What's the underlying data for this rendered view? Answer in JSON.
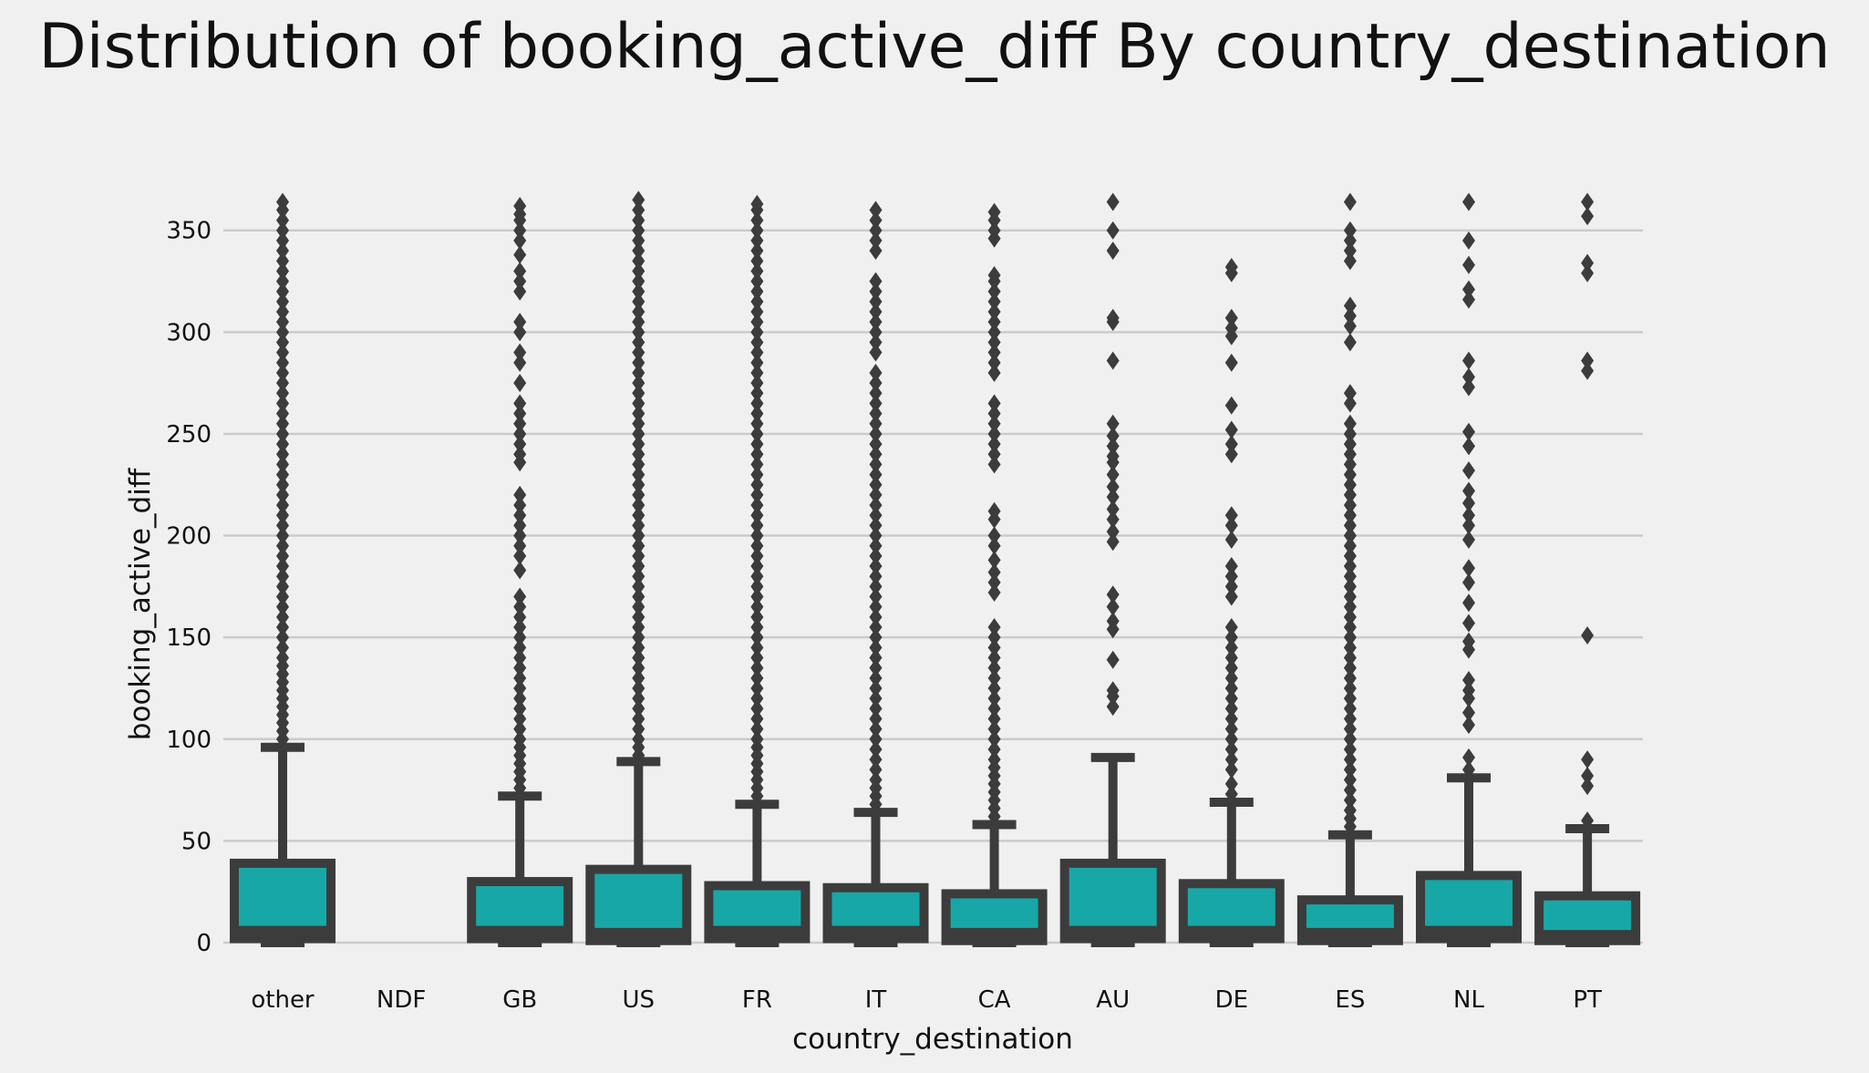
{
  "chart_data": {
    "type": "box",
    "title": "Distribution of booking_active_diff By country_destination",
    "xlabel": "country_destination",
    "ylabel": "booking_active_diff",
    "ylim": [
      0,
      370
    ],
    "yticks": [
      0,
      50,
      100,
      150,
      200,
      250,
      300,
      350
    ],
    "grid": "horizontal",
    "colors": {
      "background": "#f0f0f0",
      "box_fill": "#17a7a7",
      "edge": "#3c3c3c",
      "grid": "#cbcbcb",
      "text": "#111111"
    },
    "categories": [
      "other",
      "NDF",
      "GB",
      "US",
      "FR",
      "IT",
      "CA",
      "AU",
      "DE",
      "ES",
      "NL",
      "PT"
    ],
    "boxes": [
      {
        "category": "other",
        "min": 0,
        "q1": 2,
        "median": 6,
        "q3": 39,
        "max": 96,
        "outliers": [
          100,
          104,
          108,
          112,
          116,
          120,
          124,
          128,
          132,
          136,
          140,
          145,
          150,
          155,
          160,
          165,
          170,
          175,
          180,
          185,
          190,
          195,
          200,
          205,
          210,
          215,
          220,
          225,
          230,
          235,
          240,
          245,
          250,
          255,
          260,
          265,
          270,
          275,
          280,
          285,
          290,
          295,
          300,
          305,
          310,
          315,
          320,
          325,
          330,
          335,
          340,
          345,
          350,
          355,
          360,
          364
        ]
      },
      {
        "category": "NDF",
        "min": null,
        "q1": null,
        "median": null,
        "q3": null,
        "max": null,
        "outliers": []
      },
      {
        "category": "GB",
        "min": 0,
        "q1": 2,
        "median": 6,
        "q3": 30,
        "max": 72,
        "outliers": [
          76,
          80,
          84,
          88,
          92,
          96,
          100,
          105,
          110,
          115,
          120,
          125,
          130,
          135,
          140,
          145,
          150,
          155,
          160,
          165,
          170,
          183,
          190,
          195,
          200,
          205,
          210,
          215,
          220,
          236,
          240,
          245,
          250,
          255,
          260,
          265,
          275,
          285,
          290,
          300,
          305,
          320,
          325,
          330,
          338,
          345,
          350,
          355,
          358,
          362
        ]
      },
      {
        "category": "US",
        "min": 0,
        "q1": 1,
        "median": 5,
        "q3": 36,
        "max": 89,
        "outliers": [
          92,
          96,
          100,
          105,
          110,
          115,
          120,
          125,
          130,
          135,
          140,
          145,
          150,
          155,
          160,
          165,
          170,
          175,
          180,
          185,
          190,
          195,
          200,
          205,
          210,
          215,
          220,
          225,
          230,
          235,
          240,
          245,
          250,
          255,
          260,
          265,
          270,
          275,
          280,
          285,
          290,
          295,
          300,
          305,
          310,
          315,
          320,
          325,
          330,
          335,
          340,
          345,
          350,
          355,
          360,
          365
        ]
      },
      {
        "category": "FR",
        "min": 0,
        "q1": 2,
        "median": 6,
        "q3": 28,
        "max": 68,
        "outliers": [
          72,
          76,
          80,
          84,
          88,
          92,
          96,
          100,
          105,
          110,
          115,
          120,
          125,
          130,
          135,
          140,
          145,
          150,
          155,
          160,
          165,
          170,
          175,
          180,
          185,
          190,
          195,
          200,
          205,
          210,
          215,
          220,
          225,
          230,
          235,
          240,
          245,
          250,
          255,
          260,
          265,
          270,
          275,
          280,
          285,
          290,
          295,
          300,
          305,
          310,
          315,
          320,
          325,
          330,
          335,
          340,
          345,
          350,
          355,
          360,
          363
        ]
      },
      {
        "category": "IT",
        "min": 0,
        "q1": 2,
        "median": 6,
        "q3": 27,
        "max": 64,
        "outliers": [
          68,
          72,
          76,
          80,
          85,
          90,
          95,
          100,
          105,
          110,
          115,
          120,
          125,
          130,
          135,
          140,
          145,
          150,
          155,
          160,
          165,
          170,
          175,
          180,
          185,
          190,
          195,
          200,
          205,
          210,
          215,
          220,
          225,
          230,
          235,
          240,
          245,
          250,
          255,
          260,
          265,
          270,
          275,
          280,
          290,
          295,
          300,
          305,
          310,
          315,
          320,
          325,
          340,
          345,
          350,
          355,
          360
        ]
      },
      {
        "category": "CA",
        "min": 0,
        "q1": 1,
        "median": 5,
        "q3": 24,
        "max": 58,
        "outliers": [
          62,
          66,
          70,
          74,
          78,
          82,
          86,
          90,
          95,
          100,
          105,
          110,
          115,
          120,
          125,
          130,
          135,
          140,
          145,
          150,
          155,
          172,
          177,
          182,
          188,
          195,
          200,
          208,
          212,
          235,
          240,
          245,
          250,
          255,
          260,
          265,
          280,
          285,
          290,
          295,
          300,
          305,
          310,
          315,
          320,
          325,
          328,
          346,
          350,
          355,
          359
        ]
      },
      {
        "category": "AU",
        "min": 0,
        "q1": 2,
        "median": 6,
        "q3": 39,
        "max": 91,
        "outliers": [
          116,
          121,
          124,
          139,
          154,
          158,
          165,
          171,
          197,
          202,
          208,
          213,
          219,
          224,
          230,
          236,
          239,
          244,
          249,
          255,
          286,
          305,
          307,
          340,
          350,
          364
        ]
      },
      {
        "category": "DE",
        "min": 0,
        "q1": 2,
        "median": 6,
        "q3": 29,
        "max": 69,
        "outliers": [
          73,
          78,
          85,
          90,
          95,
          100,
          105,
          110,
          115,
          120,
          125,
          130,
          135,
          140,
          145,
          150,
          155,
          170,
          175,
          180,
          185,
          198,
          205,
          210,
          240,
          245,
          252,
          264,
          285,
          298,
          302,
          307,
          329,
          332
        ]
      },
      {
        "category": "ES",
        "min": 0,
        "q1": 1,
        "median": 5,
        "q3": 21,
        "max": 53,
        "outliers": [
          57,
          61,
          65,
          70,
          75,
          80,
          85,
          90,
          95,
          100,
          105,
          110,
          115,
          120,
          125,
          130,
          135,
          140,
          145,
          150,
          155,
          160,
          165,
          170,
          175,
          180,
          185,
          190,
          195,
          200,
          205,
          210,
          215,
          220,
          225,
          230,
          235,
          240,
          245,
          250,
          255,
          265,
          270,
          295,
          303,
          308,
          313,
          335,
          340,
          345,
          350,
          364
        ]
      },
      {
        "category": "NL",
        "min": 0,
        "q1": 2,
        "median": 6,
        "q3": 33,
        "max": 81,
        "outliers": [
          85,
          91,
          107,
          113,
          120,
          124,
          129,
          144,
          148,
          157,
          167,
          177,
          184,
          198,
          205,
          210,
          216,
          222,
          232,
          244,
          251,
          273,
          278,
          286,
          316,
          321,
          333,
          345,
          364
        ]
      },
      {
        "category": "PT",
        "min": 0,
        "q1": 1,
        "median": 4,
        "q3": 23,
        "max": 56,
        "outliers": [
          60,
          77,
          82,
          90,
          151,
          281,
          286,
          329,
          334,
          357,
          364
        ]
      }
    ]
  }
}
